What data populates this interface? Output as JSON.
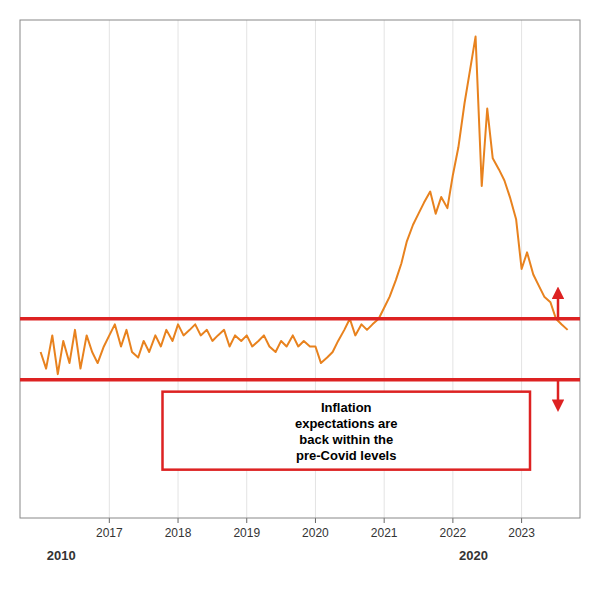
{
  "chart_data": {
    "type": "line",
    "x": [
      2016.0,
      2016.08,
      2016.17,
      2016.25,
      2016.33,
      2016.42,
      2016.5,
      2016.58,
      2016.67,
      2016.75,
      2016.83,
      2016.92,
      2017.0,
      2017.08,
      2017.17,
      2017.25,
      2017.33,
      2017.42,
      2017.5,
      2017.58,
      2017.67,
      2017.75,
      2017.83,
      2017.92,
      2018.0,
      2018.08,
      2018.17,
      2018.25,
      2018.33,
      2018.42,
      2018.5,
      2018.58,
      2018.67,
      2018.75,
      2018.83,
      2018.92,
      2019.0,
      2019.08,
      2019.17,
      2019.25,
      2019.33,
      2019.42,
      2019.5,
      2019.58,
      2019.67,
      2019.75,
      2019.83,
      2019.92,
      2020.0,
      2020.08,
      2020.17,
      2020.25,
      2020.33,
      2020.42,
      2020.5,
      2020.58,
      2020.67,
      2020.75,
      2020.83,
      2020.92,
      2021.0,
      2021.08,
      2021.17,
      2021.25,
      2021.33,
      2021.42,
      2021.5,
      2021.58,
      2021.67,
      2021.75,
      2021.83,
      2021.92,
      2022.0,
      2022.08,
      2022.17,
      2022.25,
      2022.33,
      2022.42,
      2022.5,
      2022.58,
      2022.67,
      2022.75,
      2022.83,
      2022.92,
      2023.0,
      2023.08,
      2023.17,
      2023.25,
      2023.33,
      2023.42,
      2023.5,
      2023.58,
      2023.67
    ],
    "series": [
      {
        "color": "#e8821e",
        "values": [
          2.5,
          2.2,
          2.8,
          2.1,
          2.7,
          2.3,
          2.9,
          2.2,
          2.8,
          2.5,
          2.3,
          2.6,
          2.8,
          3.0,
          2.6,
          2.9,
          2.5,
          2.4,
          2.7,
          2.5,
          2.8,
          2.6,
          2.9,
          2.7,
          3.0,
          2.8,
          2.9,
          3.0,
          2.8,
          2.9,
          2.7,
          2.8,
          2.9,
          2.6,
          2.8,
          2.7,
          2.8,
          2.6,
          2.7,
          2.8,
          2.6,
          2.5,
          2.7,
          2.6,
          2.8,
          2.6,
          2.7,
          2.6,
          2.6,
          2.3,
          2.4,
          2.5,
          2.7,
          2.9,
          3.1,
          2.8,
          3.0,
          2.9,
          3.0,
          3.1,
          3.3,
          3.5,
          3.8,
          4.1,
          4.5,
          4.8,
          5.0,
          5.2,
          5.4,
          5.0,
          5.3,
          5.1,
          5.7,
          6.2,
          7.0,
          7.6,
          8.2,
          5.5,
          6.9,
          6.0,
          5.8,
          5.6,
          5.3,
          4.9,
          4.0,
          4.3,
          3.9,
          3.7,
          3.5,
          3.4,
          3.1,
          3.0,
          2.9
        ]
      }
    ],
    "xlim": [
      2015.7,
      2023.85
    ],
    "ylim": [
      -0.5,
      8.5
    ],
    "xticks": [
      2017,
      2018,
      2019,
      2020,
      2021,
      2022,
      2023
    ],
    "yticks": [],
    "tick_labels": "x",
    "grid": true,
    "x_groups": [
      {
        "value": 2016.3,
        "label": "2010"
      },
      {
        "value": 2022.3,
        "label": "2020"
      }
    ],
    "reference_lines": [
      {
        "value": 3.1,
        "color": "#dd2222"
      },
      {
        "value": 2.0,
        "color": "#dd2222"
      }
    ],
    "annotations": [
      {
        "text": "Inflation\nexpectations are\nback within the\npre-Covid levels"
      }
    ]
  }
}
